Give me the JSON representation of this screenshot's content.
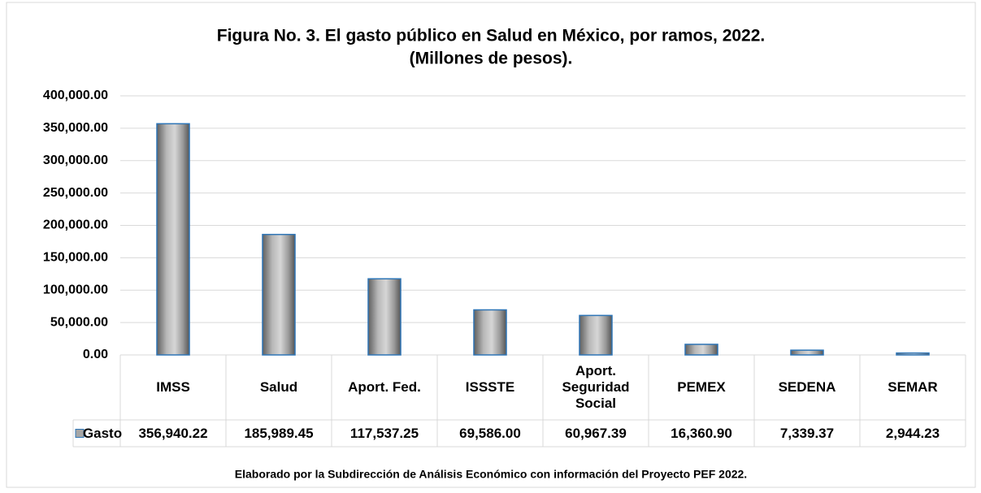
{
  "chart_data": {
    "type": "bar",
    "title": "Figura No. 3. El gasto público en Salud en México, por ramos, 2022.",
    "subtitle": "(Millones de pesos).",
    "categories": [
      "IMSS",
      "Salud",
      "Aport. Fed.",
      "ISSSTE",
      "Aport. Seguridad Social",
      "PEMEX",
      "SEDENA",
      "SEMAR"
    ],
    "series": [
      {
        "name": "Gasto",
        "color": "#a6a6a6",
        "values": [
          356940.22,
          185989.45,
          117537.25,
          69586.0,
          60967.39,
          16360.9,
          7339.37,
          2944.23
        ],
        "value_labels": [
          "356,940.22",
          "185,989.45",
          "117,537.25",
          "69,586.00",
          "60,967.39",
          "16,360.90",
          "7,339.37",
          "2,944.23"
        ]
      }
    ],
    "ylim": [
      0,
      400000
    ],
    "yticks": [
      {
        "value": 0,
        "label": "0.00"
      },
      {
        "value": 50000,
        "label": "50,000.00"
      },
      {
        "value": 100000,
        "label": "100,000.00"
      },
      {
        "value": 150000,
        "label": "150,000.00"
      },
      {
        "value": 200000,
        "label": "200,000.00"
      },
      {
        "value": 250000,
        "label": "250,000.00"
      },
      {
        "value": 300000,
        "label": "300,000.00"
      },
      {
        "value": 350000,
        "label": "350,000.00"
      },
      {
        "value": 400000,
        "label": "400,000.00"
      }
    ],
    "grid": true,
    "source": "Elaborado por la Subdirección de Análisis Económico con información del Proyecto PEF 2022."
  }
}
